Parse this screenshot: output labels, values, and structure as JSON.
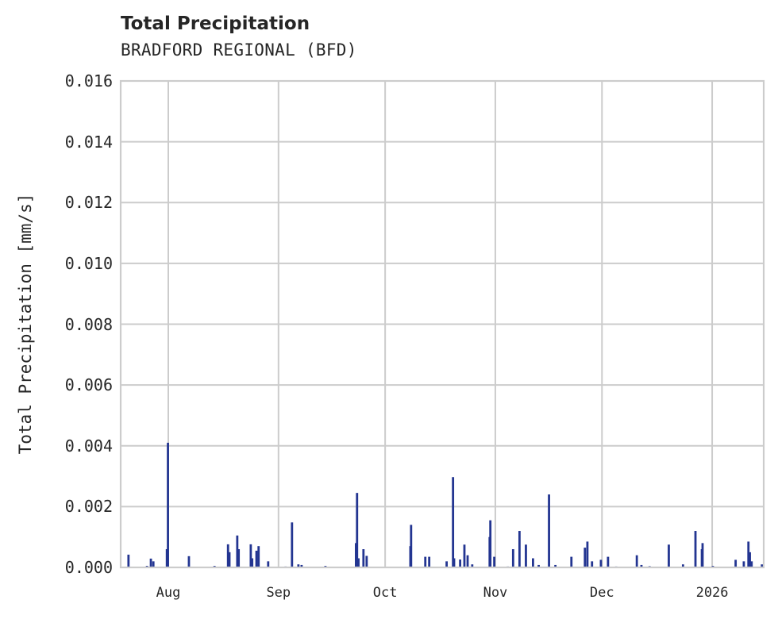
{
  "chart_data": {
    "type": "bar",
    "title": "Total Precipitation",
    "subtitle": "BRADFORD REGIONAL (BFD)",
    "xlabel": "",
    "ylabel": "Total Precipitation [mm/s]",
    "ylim": [
      0,
      0.016
    ],
    "yticks": [
      "0.000",
      "0.002",
      "0.004",
      "0.006",
      "0.008",
      "0.010",
      "0.012",
      "0.014",
      "0.016"
    ],
    "xticks": [
      "Aug",
      "Sep",
      "Oct",
      "Nov",
      "Dec",
      "2026"
    ],
    "xtick_day_offsets": [
      0,
      31,
      61,
      92,
      122,
      153
    ],
    "x_range_days_from_aug1": [
      -13.4,
      167.5
    ],
    "grid": true,
    "legend": null,
    "bar_color": "#233591",
    "x_unit": "days since Aug 1",
    "x": [
      -11.2,
      -6,
      -4.9,
      -4.2,
      -0.4,
      -0.1,
      5.8,
      13,
      16.8,
      17.2,
      19.4,
      19.8,
      23.2,
      23.6,
      24.8,
      25.4,
      28.1,
      33,
      34.8,
      36.6,
      37.5,
      44.2,
      52.8,
      53.1,
      53.5,
      54.9,
      55.8,
      68.1,
      68.3,
      72.3,
      73.4,
      78.3,
      80.1,
      80.4,
      82.1,
      83.3,
      84.2,
      85.5,
      90.4,
      90.6,
      91.7,
      95.5,
      97,
      98.8,
      100.6,
      102.6,
      104.2,
      107.1,
      108.9,
      113.4,
      117.2,
      117.9,
      119.2,
      121.7,
      123.7,
      126,
      131.8,
      133.1,
      135.4,
      140.8,
      144.8,
      148.3,
      150.1,
      150.3,
      153.2,
      159.6,
      161.9,
      163.2,
      163.6,
      164.1,
      167
    ],
    "values": [
      0.00042,
      5e-05,
      0.00029,
      0.0002,
      0.0006,
      0.0041,
      0.00037,
      5e-05,
      0.00076,
      0.0005,
      0.00105,
      0.0006,
      0.00076,
      0.0003,
      0.00055,
      0.0007,
      0.0002,
      3e-05,
      0.00148,
      0.0001,
      8e-05,
      5e-05,
      0.0008,
      0.00245,
      0.0003,
      0.0006,
      0.00038,
      0.0007,
      0.0014,
      0.00035,
      0.00035,
      0.0002,
      0.00297,
      0.0003,
      0.00026,
      0.00075,
      0.0004,
      0.0001,
      0.001,
      0.00155,
      0.00035,
      3e-05,
      0.0006,
      0.0012,
      0.00075,
      0.0003,
      8e-05,
      0.0024,
      8e-05,
      0.00035,
      0.00065,
      0.00085,
      0.0002,
      0.00025,
      0.00035,
      3e-05,
      0.0004,
      8e-05,
      4e-05,
      0.00075,
      0.0001,
      0.0012,
      0.0006,
      0.0008,
      5e-05,
      0.00025,
      0.0002,
      0.00085,
      0.0005,
      0.0002,
      0.0001
    ]
  }
}
